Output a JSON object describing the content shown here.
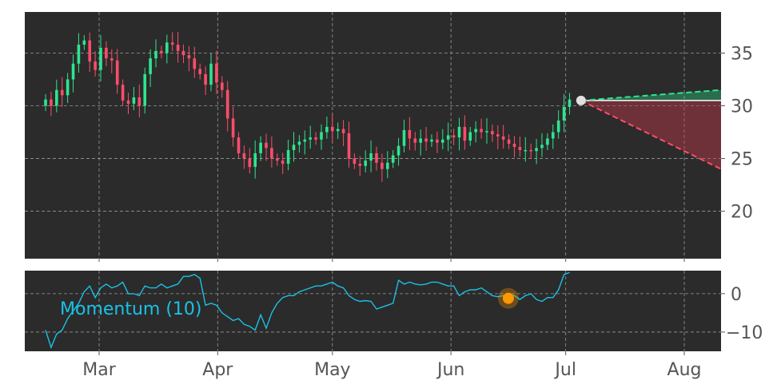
{
  "chart_data": [
    {
      "type": "candlestick",
      "title": "",
      "xlabel": "",
      "ylabel": "",
      "x_tick_labels": [
        "Mar",
        "Apr",
        "May",
        "Jun",
        "Jul",
        "Aug"
      ],
      "ylim": [
        15.5,
        38.9
      ],
      "y_ticks": [
        20,
        25,
        30,
        35
      ],
      "grid": true,
      "colors": {
        "up": "#2ee58f",
        "down": "#ff4d6a",
        "background": "#2b2b2b",
        "grid": "#9a9a9a"
      },
      "series": [
        {
          "x_range": [
            "Feb 15",
            "Jul 2"
          ],
          "close": [
            30.6,
            30.0,
            31.5,
            31.0,
            32.5,
            34.0,
            35.8,
            36.2,
            34.2,
            33.4,
            35.5,
            34.5,
            34.3,
            32.0,
            30.5,
            30.2,
            30.8,
            30.0,
            33.0,
            34.5,
            35.2,
            35.0,
            36.0,
            35.8,
            35.2,
            34.8,
            34.5,
            33.5,
            33.0,
            32.0,
            34.0,
            32.2,
            31.5,
            28.8,
            27.0,
            25.5,
            25.0,
            24.2,
            25.5,
            26.5,
            26.0,
            25.0,
            24.8,
            24.5,
            25.8,
            26.3,
            26.6,
            26.8,
            27.0,
            26.8,
            27.5,
            28.0,
            27.6,
            27.8,
            27.4,
            25.0,
            24.5,
            24.3,
            24.8,
            25.5,
            24.6,
            24.0,
            24.6,
            25.3,
            26.2,
            27.7,
            26.9,
            26.5,
            26.9,
            26.6,
            26.8,
            26.5,
            26.8,
            27.2,
            27.0,
            28.0,
            26.7,
            27.5,
            27.8,
            27.5,
            27.6,
            27.3,
            27.1,
            26.8,
            26.4,
            26.1,
            25.8,
            25.8,
            25.7,
            26.0,
            26.3,
            26.9,
            27.5,
            28.6,
            29.9,
            30.6
          ]
        }
      ],
      "forecast": {
        "start": {
          "x": "Jul 5",
          "value": 30.5
        },
        "end": "Aug 12",
        "upper": 31.5,
        "lower": 24.0,
        "flat": 30.5
      }
    },
    {
      "type": "line",
      "title": "",
      "xlabel": "",
      "ylabel": "",
      "series": [
        {
          "name": "Momentum (10)",
          "x_range": [
            "Feb 15",
            "Jul 2"
          ],
          "values": [
            -9.5,
            -14.0,
            -10.5,
            -9.5,
            -6.5,
            -4.5,
            -2.5,
            0.5,
            2.0,
            -1.0,
            1.5,
            2.5,
            1.5,
            2.0,
            3.0,
            0.0,
            0.0,
            -0.5,
            2.0,
            1.5,
            1.5,
            2.5,
            1.5,
            2.0,
            2.5,
            4.5,
            4.5,
            5.0,
            4.0,
            -3.0,
            -2.5,
            -3.0,
            -5.0,
            -6.0,
            -7.0,
            -6.5,
            -8.0,
            -8.5,
            -9.5,
            -5.5,
            -9.0,
            -5.0,
            -2.5,
            -1.0,
            -0.5,
            -0.5,
            0.5,
            1.0,
            1.5,
            2.0,
            2.0,
            2.5,
            3.0,
            2.0,
            1.5,
            -0.5,
            -1.5,
            -2.0,
            -1.8,
            -2.0,
            -4.0,
            -3.5,
            -3.0,
            -2.5,
            3.5,
            2.5,
            3.0,
            2.5,
            2.3,
            2.5,
            3.0,
            3.0,
            2.5,
            2.0,
            2.0,
            -0.5,
            0.5,
            1.0,
            1.0,
            1.5,
            0.5,
            -0.5,
            -0.8,
            -0.5,
            -0.3,
            -0.5,
            -1.5,
            -0.5,
            0.0,
            -1.5,
            -2.0,
            -1.0,
            -1.0,
            1.0,
            5.0,
            5.5
          ]
        }
      ],
      "ylim": [
        -15,
        6
      ],
      "y_ticks": [
        -10,
        0
      ],
      "grid": true,
      "highlight": {
        "x": "Jun 16",
        "value": -1.2
      },
      "colors": {
        "line": "#19c2e6",
        "highlight": "#ff9800"
      }
    }
  ]
}
